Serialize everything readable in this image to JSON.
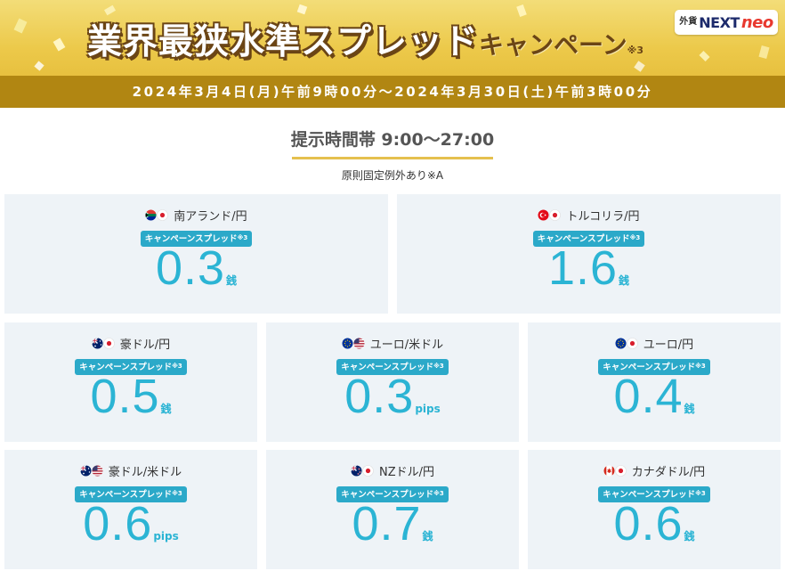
{
  "banner": {
    "title_main": "業界最狭水準スプレッド",
    "title_sub": "キャンペーン",
    "title_note": "※3",
    "logo_small": "外貨",
    "logo_next": "NEXT",
    "logo_neo": "neo",
    "period": "2024年3月4日(月)午前9時00分～2024年3月30日(土)午前3時00分",
    "colors": {
      "gold": "#ecc94a",
      "bar": "#b18612",
      "title_outline": "#6b4515"
    }
  },
  "heading": {
    "label": "提示時間帯 9:00～27:00",
    "note": "原則固定例外あり※A"
  },
  "badge_label": "キャンペーンスプレッド",
  "badge_note": "※3",
  "accent_color": "#2bb4d4",
  "cards": [
    {
      "pair": "南アランド/円",
      "value": "0.3",
      "unit": "銭",
      "flags": [
        "south-africa-flag-icon",
        "japan-flag-icon"
      ]
    },
    {
      "pair": "トルコリラ/円",
      "value": "1.6",
      "unit": "銭",
      "flags": [
        "turkey-flag-icon",
        "japan-flag-icon"
      ]
    },
    {
      "pair": "豪ドル/円",
      "value": "0.5",
      "unit": "銭",
      "flags": [
        "australia-flag-icon",
        "japan-flag-icon"
      ]
    },
    {
      "pair": "ユーロ/米ドル",
      "value": "0.3",
      "unit": "pips",
      "flags": [
        "eu-flag-icon",
        "usa-flag-icon"
      ]
    },
    {
      "pair": "ユーロ/円",
      "value": "0.4",
      "unit": "銭",
      "flags": [
        "eu-flag-icon",
        "japan-flag-icon"
      ]
    },
    {
      "pair": "豪ドル/米ドル",
      "value": "0.6",
      "unit": "pips",
      "flags": [
        "australia-flag-icon",
        "usa-flag-icon"
      ]
    },
    {
      "pair": "NZドル/円",
      "value": "0.7",
      "unit": "銭",
      "flags": [
        "new-zealand-flag-icon",
        "japan-flag-icon"
      ]
    },
    {
      "pair": "カナダドル/円",
      "value": "0.6",
      "unit": "銭",
      "flags": [
        "canada-flag-icon",
        "japan-flag-icon"
      ]
    }
  ]
}
